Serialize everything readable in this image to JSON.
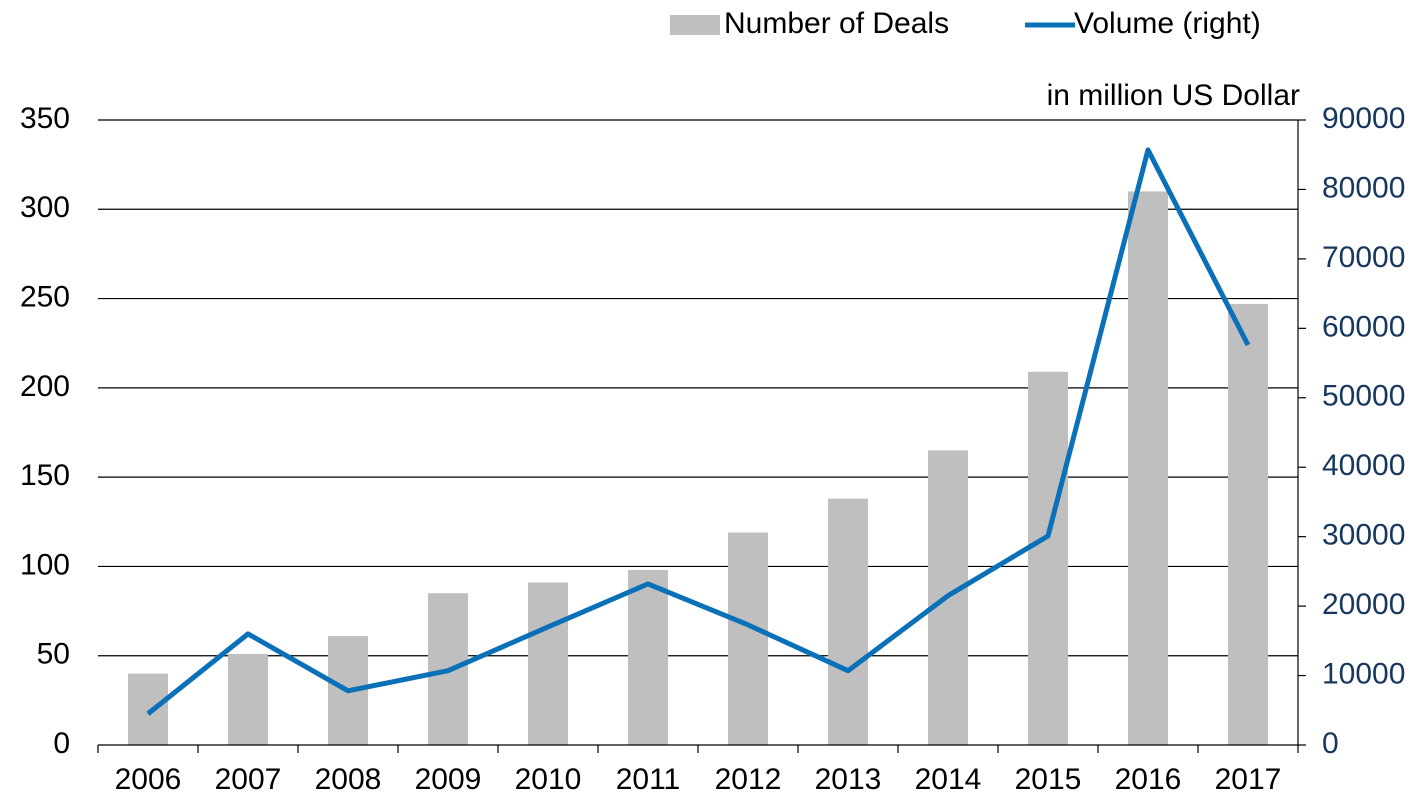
{
  "chart_data": {
    "type": "bar_line",
    "categories": [
      "2006",
      "2007",
      "2008",
      "2009",
      "2010",
      "2011",
      "2012",
      "2013",
      "2014",
      "2015",
      "2016",
      "2017"
    ],
    "series": [
      {
        "name": "Number of Deals",
        "color": "#bfbfbf",
        "type": "bar",
        "values": [
          40,
          51,
          61,
          85,
          91,
          98,
          119,
          138,
          165,
          209,
          310,
          247
        ]
      },
      {
        "name": "Volume (right)",
        "color": "#0a70b8",
        "type": "line",
        "axis": "y2",
        "values": [
          4500,
          16000,
          7800,
          10700,
          17000,
          23200,
          17300,
          10700,
          21500,
          30100,
          85700,
          57600
        ]
      }
    ],
    "y2_label": "in million US Dollar",
    "ylim": [
      0,
      350
    ],
    "yticks": [
      0,
      50,
      100,
      150,
      200,
      250,
      300,
      350
    ],
    "y2lim": [
      0,
      90000
    ],
    "y2ticks": [
      0,
      10000,
      20000,
      30000,
      40000,
      50000,
      60000,
      70000,
      80000,
      90000
    ],
    "y2_tick_color": "#17375e",
    "grid": true,
    "legend": "top"
  }
}
